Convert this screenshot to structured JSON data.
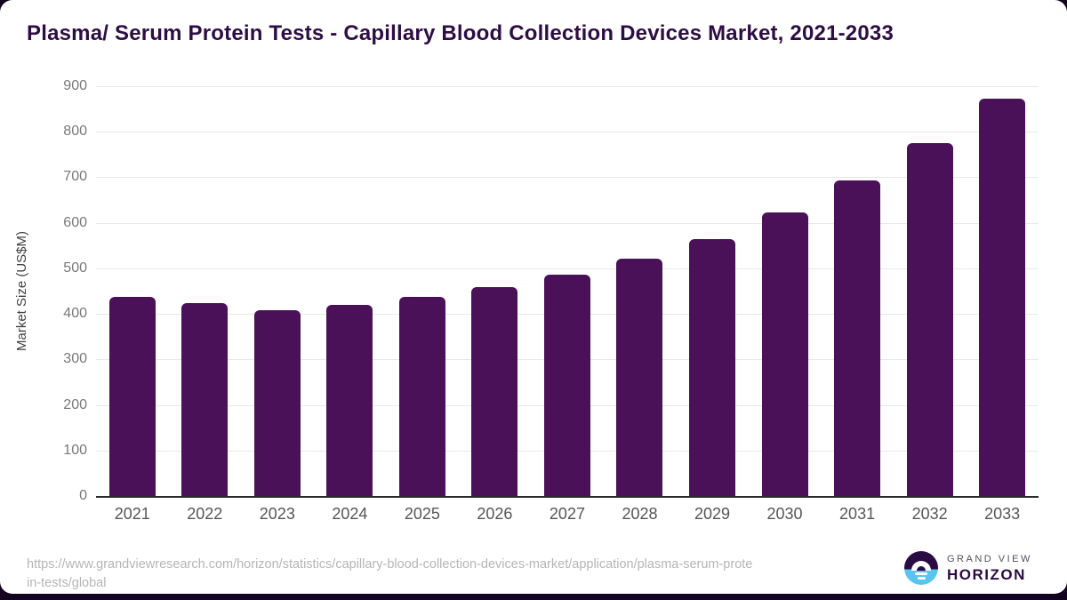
{
  "title": "Plasma/ Serum Protein Tests - Capillary Blood Collection Devices Market, 2021-2033",
  "chart_data": {
    "type": "bar",
    "categories": [
      "2021",
      "2022",
      "2023",
      "2024",
      "2025",
      "2026",
      "2027",
      "2028",
      "2029",
      "2030",
      "2031",
      "2032",
      "2033"
    ],
    "values": [
      438,
      424,
      408,
      420,
      438,
      459,
      486,
      521,
      564,
      623,
      694,
      776,
      872
    ],
    "title": "Plasma/ Serum Protein Tests - Capillary Blood Collection Devices Market, 2021-2033",
    "xlabel": "",
    "ylabel": "Market Size (US$M)",
    "ylim": [
      0,
      900
    ],
    "ytick_step": 100,
    "grid": "horizontal",
    "legend": "none",
    "bar_color": "#4a1158"
  },
  "footer": {
    "source_url_line1": "https://www.grandviewresearch.com/horizon/statistics/capillary-blood-collection-devices-market/application/plasma-serum-prote",
    "source_url_line2": "in-tests/global",
    "logo": {
      "line1": "GRAND VIEW",
      "line2": "HORIZON"
    }
  },
  "colors": {
    "background_dark": "#140320",
    "card": "#ffffff",
    "title_text": "#2e0d45",
    "bar": "#4a1158",
    "gridline": "#e8e8e8",
    "axis_line": "#2b2b2b",
    "y_tick_text": "#787878",
    "x_tick_text": "#565656",
    "url_text": "#b5b5b5",
    "logo_purple": "#2b0b44",
    "logo_blue": "#58c5f0"
  }
}
